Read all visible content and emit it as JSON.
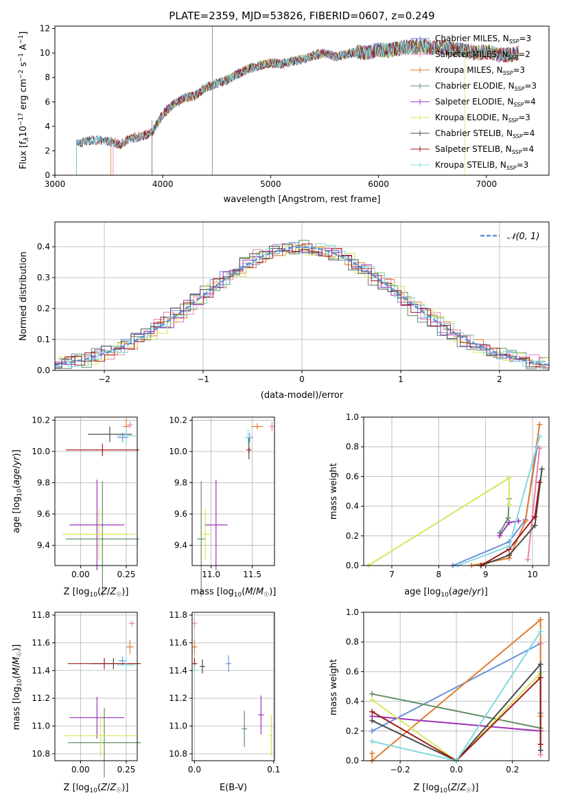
{
  "figure_title": "PLATE=2359, MJD=53826, FIBERID=0607, z=0.249",
  "colors": {
    "Chabrier MILES": "#6a8fd8",
    "Salpeter MILES": "#e87fae",
    "Kroupa MILES": "#e07b2c",
    "Chabrier ELODIE": "#5f8f68",
    "Salpeter ELODIE": "#9b30b8",
    "Kroupa ELODIE": "#d4e85a",
    "Chabrier STELIB": "#4a4a4a",
    "Salpeter STELIB": "#a01818",
    "Kroupa STELIB": "#80d8e0",
    "gaussian": "#5a8fd6"
  },
  "chart_data": [
    {
      "id": "spectrum",
      "type": "line",
      "xlabel": "wavelength [Angstrom, rest frame]",
      "ylabel": "Flux [f_λ10^-17 erg cm^-2 s^-1 A^-1]",
      "xlim": [
        3000,
        7580
      ],
      "ylim": [
        0,
        12.2
      ],
      "xticks": [
        3000,
        4000,
        5000,
        6000,
        7000
      ],
      "yticks": [
        0,
        2,
        4,
        6,
        8,
        10,
        12
      ],
      "legend_position": "upper right",
      "legend": [
        {
          "model": "Chabrier MILES",
          "nssp": "3"
        },
        {
          "model": "Salpeter MILES",
          "nssp": "2"
        },
        {
          "model": "Kroupa MILES",
          "nssp": "3"
        },
        {
          "model": "Chabrier ELODIE",
          "nssp": "3"
        },
        {
          "model": "Salpeter ELODIE",
          "nssp": "4"
        },
        {
          "model": "Kroupa ELODIE",
          "nssp": "3"
        },
        {
          "model": "Chabrier STELIB",
          "nssp": "4"
        },
        {
          "model": "Salpeter STELIB",
          "nssp": "4"
        },
        {
          "model": "Kroupa STELIB",
          "nssp": "3"
        }
      ],
      "continuum": {
        "x": [
          3200,
          3300,
          3400,
          3500,
          3600,
          3700,
          3800,
          3900,
          4000,
          4100,
          4200,
          4300,
          4400,
          4500,
          4600,
          4700,
          4800,
          4900,
          5000,
          5100,
          5200,
          5300,
          5400,
          5500,
          5600,
          5700,
          5800,
          5900,
          6000,
          6100,
          6200,
          6300,
          6400,
          6500,
          6600,
          6700,
          6800,
          6900,
          7000,
          7100,
          7200,
          7300
        ],
        "y": [
          2.6,
          2.8,
          2.9,
          2.8,
          2.5,
          3.0,
          3.2,
          3.5,
          5.0,
          5.8,
          6.3,
          6.5,
          7.2,
          7.5,
          7.8,
          8.3,
          8.7,
          9.0,
          9.2,
          9.1,
          9.3,
          9.5,
          9.8,
          10.0,
          9.7,
          9.9,
          10.1,
          10.0,
          10.3,
          10.2,
          10.4,
          10.5,
          10.6,
          10.4,
          10.5,
          10.3,
          10.2,
          10.0,
          10.1,
          9.9,
          9.8,
          10.0
        ]
      },
      "model_starts": [
        3200,
        3540,
        3520,
        3900,
        3900,
        3900,
        3200,
        3200,
        3200
      ],
      "noise_amplitude": 0.8
    },
    {
      "id": "residuals",
      "type": "area",
      "xlabel": "(data-model)/error",
      "ylabel": "Normed distribution",
      "xlim": [
        -2.5,
        2.5
      ],
      "ylim": [
        0,
        0.48
      ],
      "xticks": [
        -2,
        -1,
        0,
        1,
        2
      ],
      "yticks": [
        0,
        0.1,
        0.2,
        0.3,
        0.4
      ],
      "bin_width": 0.1,
      "gaussian_label": "𝒩(0, 1)",
      "gaussian": {
        "mean": 0,
        "sigma": 1,
        "samples": 100
      },
      "histograms": [
        {
          "name": "Chabrier MILES",
          "jitter": 0.02
        },
        {
          "name": "Salpeter MILES",
          "jitter": 0.03
        },
        {
          "name": "Kroupa MILES",
          "jitter": 0.02
        },
        {
          "name": "Chabrier ELODIE",
          "jitter": 0.03
        },
        {
          "name": "Salpeter ELODIE",
          "jitter": 0.025
        },
        {
          "name": "Kroupa ELODIE",
          "jitter": 0.03
        },
        {
          "name": "Chabrier STELIB",
          "jitter": 0.02
        },
        {
          "name": "Salpeter STELIB",
          "jitter": 0.02
        },
        {
          "name": "Kroupa STELIB",
          "jitter": 0.02
        }
      ]
    },
    {
      "id": "age_vs_Z",
      "type": "scatter",
      "xlabel": "Z [log10(Z/Z☉)]",
      "ylabel": "age  [log10(age/yr)]",
      "xlim": [
        -0.14,
        0.31
      ],
      "ylim": [
        9.27,
        10.22
      ],
      "xticks": [
        0.0,
        0.25
      ],
      "xtick_labels": [
        "0.00",
        "0.25"
      ],
      "yticks": [
        9.4,
        9.6,
        9.8,
        10.0,
        10.2
      ],
      "ytick_labels": [
        "9.4",
        "9.6",
        "9.8",
        "10.0",
        "10.2"
      ],
      "points": [
        {
          "model": "Chabrier MILES",
          "x": 0.23,
          "y": 10.09,
          "ex": 0.03,
          "ey": 0.03
        },
        {
          "model": "Salpeter MILES",
          "x": 0.27,
          "y": 10.17,
          "ex": 0.0,
          "ey": 0.02
        },
        {
          "model": "Kroupa MILES",
          "x": 0.25,
          "y": 10.16,
          "ex": 0.02,
          "ey": 0.05
        },
        {
          "model": "Chabrier ELODIE",
          "x": 0.12,
          "y": 9.44,
          "ex": 0.2,
          "ey": 0.37
        },
        {
          "model": "Salpeter ELODIE",
          "x": 0.09,
          "y": 9.53,
          "ex": 0.15,
          "ey": 0.29
        },
        {
          "model": "Kroupa ELODIE",
          "x": 0.1,
          "y": 9.47,
          "ex": 0.2,
          "ey": 0.16
        },
        {
          "model": "Chabrier STELIB",
          "x": 0.16,
          "y": 10.11,
          "ex": 0.12,
          "ey": 0.05
        },
        {
          "model": "Salpeter STELIB",
          "x": 0.12,
          "y": 10.01,
          "ex": 0.2,
          "ey": 0.04
        },
        {
          "model": "Kroupa STELIB",
          "x": 0.25,
          "y": 10.1,
          "ex": 0.05,
          "ey": 0.05
        }
      ]
    },
    {
      "id": "age_vs_mass",
      "type": "scatter",
      "xlabel": "mass [log10(M/M☉)]",
      "ylabel": "",
      "xlim": [
        10.77,
        11.77
      ],
      "ylim": [
        9.27,
        10.22
      ],
      "xticks": [
        11.0,
        11.5
      ],
      "xtick_labels": [
        "11.0",
        "11.5"
      ],
      "yticks": [
        9.4,
        9.6,
        9.8,
        10.0,
        10.2
      ],
      "ytick_labels": [
        "9.4",
        "9.6",
        "9.8",
        "10.0",
        "10.2"
      ],
      "points": [
        {
          "model": "Chabrier MILES",
          "x": 11.47,
          "y": 10.09,
          "ex": 0.04,
          "ey": 0.03
        },
        {
          "model": "Salpeter MILES",
          "x": 11.74,
          "y": 10.16,
          "ex": 0.0,
          "ey": 0.03
        },
        {
          "model": "Kroupa MILES",
          "x": 11.56,
          "y": 10.16,
          "ex": 0.07,
          "ey": 0.02
        },
        {
          "model": "Chabrier ELODIE",
          "x": 10.88,
          "y": 9.44,
          "ex": 0.05,
          "ey": 0.37
        },
        {
          "model": "Salpeter ELODIE",
          "x": 11.06,
          "y": 9.53,
          "ex": 0.14,
          "ey": 0.29
        },
        {
          "model": "Kroupa ELODIE",
          "x": 10.93,
          "y": 9.47,
          "ex": 0.07,
          "ey": 0.16
        },
        {
          "model": "Chabrier STELIB",
          "x": 11.46,
          "y": 10.02,
          "ex": 0.01,
          "ey": 0.07
        },
        {
          "model": "Salpeter STELIB",
          "x": 11.46,
          "y": 10.01,
          "ex": 0.03,
          "ey": 0.02
        },
        {
          "model": "Kroupa STELIB",
          "x": 11.45,
          "y": 10.09,
          "ex": 0.04,
          "ey": 0.05
        }
      ]
    },
    {
      "id": "weight_vs_age",
      "type": "line",
      "xlabel": "age  [log10(age/yr)]",
      "ylabel": "mass weight",
      "xlim": [
        6.4,
        10.35
      ],
      "ylim": [
        0,
        1.0
      ],
      "xticks": [
        7,
        8,
        9,
        10
      ],
      "xtick_labels": [
        "7",
        "8",
        "9",
        "10"
      ],
      "yticks": [
        0,
        0.2,
        0.4,
        0.6,
        0.8,
        1.0
      ],
      "ytick_labels": [
        "0.0",
        "0.2",
        "0.4",
        "0.6",
        "0.8",
        "1.0"
      ],
      "series": [
        {
          "model": "Chabrier MILES",
          "x": [
            8.3,
            9.5,
            9.85,
            10.1
          ],
          "y": [
            0.0,
            0.16,
            0.31,
            0.8
          ]
        },
        {
          "model": "Salpeter MILES",
          "x": [
            9.9,
            10.15
          ],
          "y": [
            0.04,
            0.79
          ]
        },
        {
          "model": "Kroupa MILES",
          "x": [
            8.7,
            9.5,
            9.85,
            10.15
          ],
          "y": [
            0.0,
            0.05,
            0.3,
            0.95
          ]
        },
        {
          "model": "Chabrier ELODIE",
          "x": [
            9.3,
            9.48,
            9.5
          ],
          "y": [
            0.22,
            0.32,
            0.45
          ]
        },
        {
          "model": "Salpeter ELODIE",
          "x": [
            9.3,
            9.5,
            9.7
          ],
          "y": [
            0.2,
            0.29,
            0.3
          ]
        },
        {
          "model": "Kroupa ELODIE",
          "x": [
            6.5,
            9.5,
            9.5
          ],
          "y": [
            0.0,
            0.59,
            0.41
          ]
        },
        {
          "model": "Chabrier STELIB",
          "x": [
            8.9,
            9.5,
            10.05,
            10.2
          ],
          "y": [
            0.0,
            0.07,
            0.27,
            0.65
          ]
        },
        {
          "model": "Salpeter STELIB",
          "x": [
            8.9,
            9.5,
            10.05,
            10.15
          ],
          "y": [
            0.0,
            0.11,
            0.33,
            0.56
          ]
        },
        {
          "model": "Kroupa STELIB",
          "x": [
            8.4,
            9.5,
            10.15
          ],
          "y": [
            0.0,
            0.13,
            0.87
          ]
        }
      ]
    },
    {
      "id": "mass_vs_Z",
      "type": "scatter",
      "xlabel": "Z [log10(Z/Z☉)]",
      "ylabel": "mass [log10(M/M☉)]",
      "xlim": [
        -0.14,
        0.31
      ],
      "ylim": [
        10.75,
        11.82
      ],
      "xticks": [
        0.0,
        0.25
      ],
      "xtick_labels": [
        "0.00",
        "0.25"
      ],
      "yticks": [
        10.8,
        11.0,
        11.2,
        11.4,
        11.6,
        11.8
      ],
      "ytick_labels": [
        "10.8",
        "11.0",
        "11.2",
        "11.4",
        "11.6",
        "11.8"
      ],
      "points": [
        {
          "model": "Chabrier MILES",
          "x": 0.23,
          "y": 11.47,
          "ex": 0.02,
          "ey": 0.03
        },
        {
          "model": "Salpeter MILES",
          "x": 0.28,
          "y": 11.74,
          "ex": 0.0,
          "ey": 0.02
        },
        {
          "model": "Kroupa MILES",
          "x": 0.27,
          "y": 11.57,
          "ex": 0.02,
          "ey": 0.05
        },
        {
          "model": "Chabrier ELODIE",
          "x": 0.13,
          "y": 10.88,
          "ex": 0.2,
          "ey": 0.25
        },
        {
          "model": "Salpeter ELODIE",
          "x": 0.09,
          "y": 11.06,
          "ex": 0.15,
          "ey": 0.15
        },
        {
          "model": "Kroupa ELODIE",
          "x": 0.11,
          "y": 10.93,
          "ex": 0.2,
          "ey": 0.15
        },
        {
          "model": "Chabrier STELIB",
          "x": 0.18,
          "y": 11.45,
          "ex": 0.12,
          "ey": 0.04
        },
        {
          "model": "Salpeter STELIB",
          "x": 0.13,
          "y": 11.45,
          "ex": 0.2,
          "ey": 0.04
        },
        {
          "model": "Kroupa STELIB",
          "x": 0.25,
          "y": 11.44,
          "ex": 0.05,
          "ey": 0.06
        }
      ]
    },
    {
      "id": "mass_vs_ebv",
      "type": "scatter",
      "xlabel": "E(B-V)",
      "ylabel": "",
      "xlim": [
        -0.003,
        0.101
      ],
      "ylim": [
        10.75,
        11.82
      ],
      "xticks": [
        0.0,
        0.1
      ],
      "xtick_labels": [
        "0.0",
        "0.1"
      ],
      "yticks": [
        10.8,
        11.0,
        11.2,
        11.4,
        11.6,
        11.8
      ],
      "ytick_labels": [
        "10.8",
        "11.0",
        "11.2",
        "11.4",
        "11.6",
        "11.8"
      ],
      "points": [
        {
          "model": "Chabrier MILES",
          "x": 0.043,
          "y": 11.45,
          "ex": 0,
          "ey": 0.06
        },
        {
          "model": "Salpeter MILES",
          "x": 0.0,
          "y": 11.74,
          "ex": 0,
          "ey": 0.03
        },
        {
          "model": "Kroupa MILES",
          "x": 0.0,
          "y": 11.57,
          "ex": 0,
          "ey": 0.05
        },
        {
          "model": "Chabrier ELODIE",
          "x": 0.063,
          "y": 10.98,
          "ex": 0,
          "ey": 0.13
        },
        {
          "model": "Salpeter ELODIE",
          "x": 0.084,
          "y": 11.08,
          "ex": 0,
          "ey": 0.14
        },
        {
          "model": "Kroupa ELODIE",
          "x": 0.097,
          "y": 10.93,
          "ex": 0,
          "ey": 0.15
        },
        {
          "model": "Chabrier STELIB",
          "x": 0.01,
          "y": 11.43,
          "ex": 0,
          "ey": 0.05
        },
        {
          "model": "Salpeter STELIB",
          "x": 0.0,
          "y": 11.45,
          "ex": 0,
          "ey": 0.04
        },
        {
          "model": "Kroupa STELIB",
          "x": 0.0,
          "y": 11.4,
          "ex": 0,
          "ey": 0.04
        }
      ]
    },
    {
      "id": "weight_vs_Z",
      "type": "line",
      "xlabel": "Z [log10(Z/Z☉)]",
      "ylabel": "mass weight",
      "xlim": [
        -0.33,
        0.33
      ],
      "ylim": [
        0,
        1.0
      ],
      "xticks": [
        -0.2,
        0.0,
        0.2
      ],
      "xtick_labels": [
        "−0.2",
        "0.0",
        "0.2"
      ],
      "yticks": [
        0,
        0.2,
        0.4,
        0.6,
        0.8,
        1.0
      ],
      "ytick_labels": [
        "0.0",
        "0.2",
        "0.4",
        "0.6",
        "0.8",
        "1.0"
      ],
      "series": [
        {
          "model": "Chabrier MILES",
          "x": [
            -0.3,
            0.3
          ],
          "y": [
            0.2,
            0.79
          ]
        },
        {
          "model": "Salpeter MILES",
          "x": [
            0.3,
            0.3
          ],
          "y": [
            0.04,
            0.79
          ]
        },
        {
          "model": "Kroupa MILES",
          "x": [
            -0.3,
            -0.3,
            0.3,
            0.3
          ],
          "y": [
            0.05,
            0.0,
            0.95,
            0.3
          ]
        },
        {
          "model": "Chabrier ELODIE",
          "x": [
            -0.3,
            0.3,
            0.3
          ],
          "y": [
            0.45,
            0.22,
            0.32
          ]
        },
        {
          "model": "Salpeter ELODIE",
          "x": [
            -0.3,
            0.3
          ],
          "y": [
            0.3,
            0.2
          ]
        },
        {
          "model": "Kroupa ELODIE",
          "x": [
            -0.3,
            0.0,
            0.3
          ],
          "y": [
            0.41,
            0.0,
            0.59
          ]
        },
        {
          "model": "Chabrier STELIB",
          "x": [
            -0.3,
            0.0,
            0.3,
            0.3
          ],
          "y": [
            0.27,
            0.0,
            0.65,
            0.07
          ]
        },
        {
          "model": "Salpeter STELIB",
          "x": [
            -0.3,
            0.0,
            0.3,
            0.3
          ],
          "y": [
            0.33,
            0.0,
            0.56,
            0.11
          ]
        },
        {
          "model": "Kroupa STELIB",
          "x": [
            -0.3,
            0.0,
            0.3
          ],
          "y": [
            0.13,
            0.0,
            0.87
          ]
        }
      ]
    }
  ]
}
